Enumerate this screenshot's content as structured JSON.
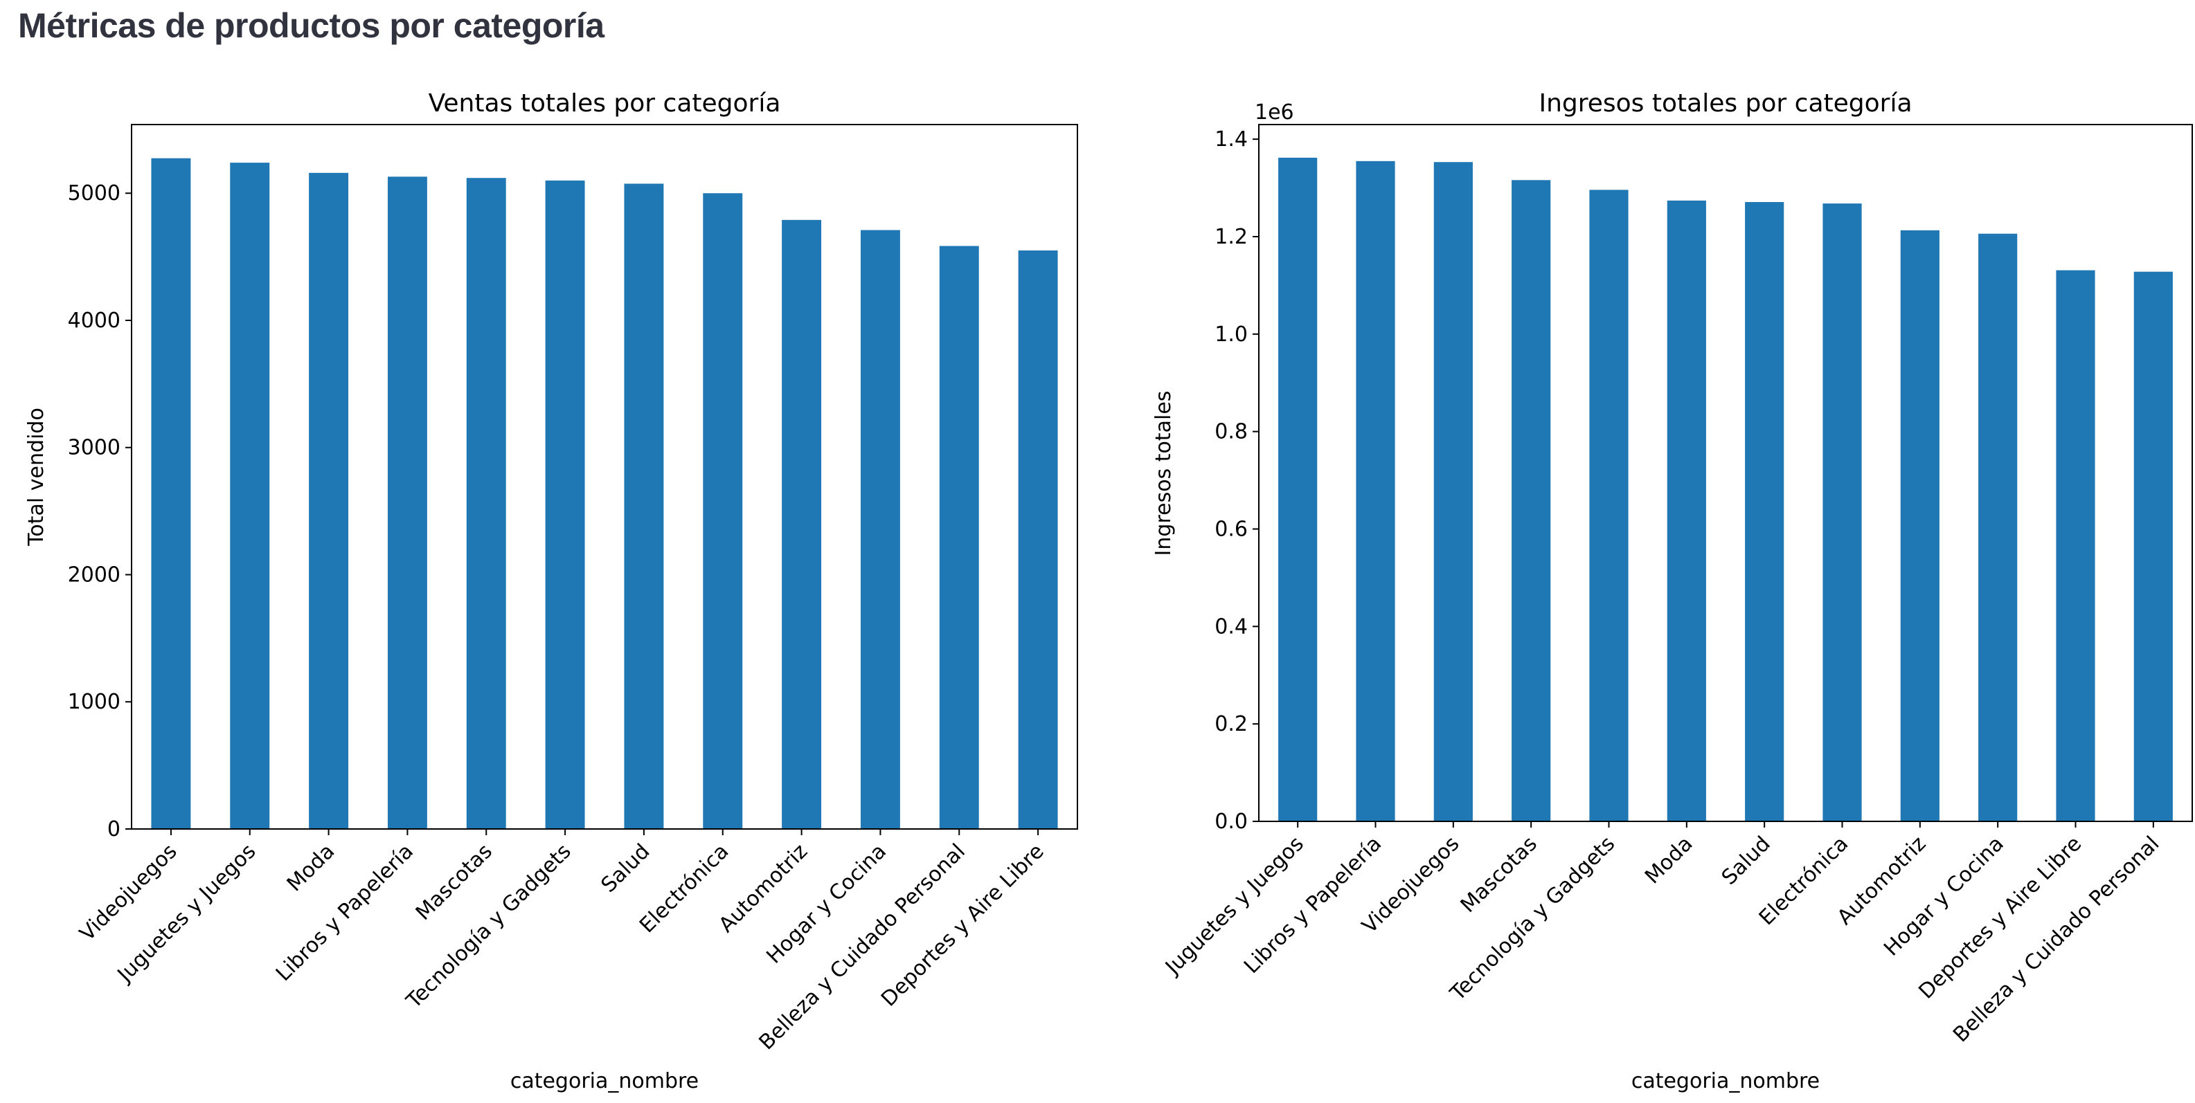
{
  "page": {
    "title": "Métricas de productos por categoría"
  },
  "colors": {
    "bar": "#1f77b4",
    "title_text": "#31333f"
  },
  "chart_data": [
    {
      "type": "bar",
      "title": "Ventas totales por categoría",
      "xlabel": "categoria_nombre",
      "ylabel": "Total vendido",
      "offset_label": "",
      "ylim": [
        0,
        5540
      ],
      "yticks": [
        0,
        1000,
        2000,
        3000,
        4000,
        5000
      ],
      "ytick_labels": [
        "0",
        "1000",
        "2000",
        "3000",
        "4000",
        "5000"
      ],
      "grid": false,
      "legend": "none",
      "categories": [
        "Videojuegos",
        "Juguetes y Juegos",
        "Moda",
        "Libros y Papelería",
        "Mascotas",
        "Tecnología y Gadgets",
        "Salud",
        "Electrónica",
        "Automotriz",
        "Hogar y Cocina",
        "Belleza y Cuidado Personal",
        "Deportes y Aire Libre"
      ],
      "values": [
        5275,
        5240,
        5160,
        5130,
        5120,
        5100,
        5075,
        5000,
        4790,
        4710,
        4585,
        4550
      ]
    },
    {
      "type": "bar",
      "title": "Ingresos totales por categoría",
      "xlabel": "categoria_nombre",
      "ylabel": "Ingresos totales",
      "offset_label": "1e6",
      "ylim": [
        0,
        1430000
      ],
      "yticks": [
        0,
        200000,
        400000,
        600000,
        800000,
        1000000,
        1200000,
        1400000
      ],
      "ytick_labels": [
        "0.0",
        "0.2",
        "0.4",
        "0.6",
        "0.8",
        "1.0",
        "1.2",
        "1.4"
      ],
      "grid": false,
      "legend": "none",
      "categories": [
        "Juguetes y Juegos",
        "Libros y Papelería",
        "Videojuegos",
        "Mascotas",
        "Tecnología y Gadgets",
        "Moda",
        "Salud",
        "Electrónica",
        "Automotriz",
        "Hogar y Cocina",
        "Deportes y Aire Libre",
        "Belleza y Cuidado Personal"
      ],
      "values": [
        1362000,
        1355000,
        1353000,
        1316000,
        1296000,
        1274000,
        1271000,
        1268000,
        1213000,
        1206000,
        1131000,
        1128000
      ]
    }
  ]
}
